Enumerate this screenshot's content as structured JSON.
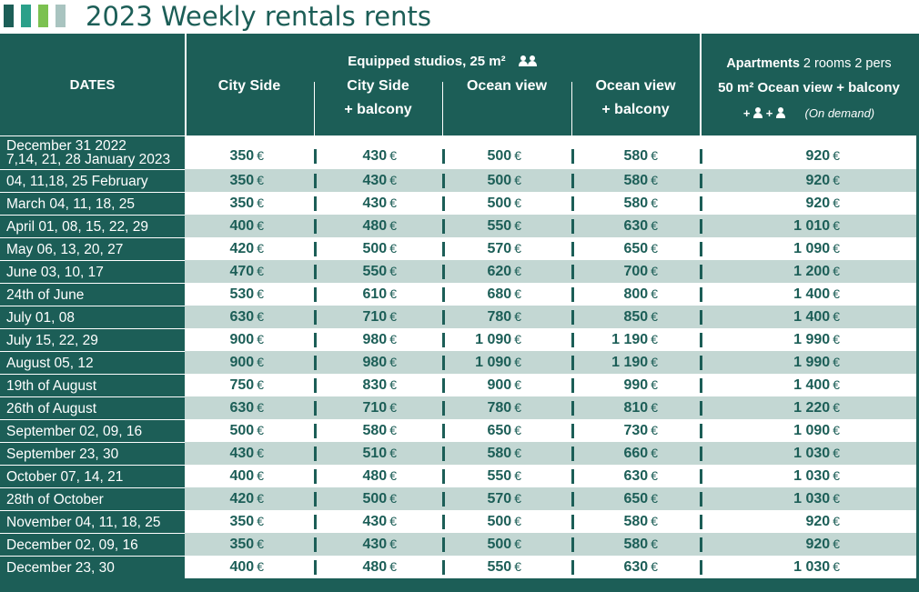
{
  "title": "2023 Weekly rentals rents",
  "logo_colors": [
    "#1c5e57",
    "#2ba08a",
    "#7cc150",
    "#a9c4c0"
  ],
  "headers": {
    "dates": "DATES",
    "studios_group": "Equipped studios, 25 m²",
    "city_side": "City Side",
    "city_side_balcony_1": "City Side",
    "city_side_balcony_2": "+ balcony",
    "ocean_view": "Ocean view",
    "ocean_view_balcony_1": "Ocean view",
    "ocean_view_balcony_2": "+ balcony",
    "apartments_bold": "Apartments",
    "apartments_rest": " 2 rooms 2 pers",
    "apartments_line2": "50 m² Ocean view + balcony",
    "apartments_plus1": "+",
    "apartments_plus2": "+",
    "on_demand": "(On demand)",
    "icon_studio": "two-persons-icon",
    "icon_extra": "person-icon"
  },
  "currency": "€",
  "rows": [
    {
      "date": "December 31 2022",
      "date2": "7,14, 21, 28 January 2023",
      "values": [
        "350",
        "430",
        "500",
        "580",
        "920"
      ]
    },
    {
      "date": "04, 11,18, 25 February",
      "values": [
        "350",
        "430",
        "500",
        "580",
        "920"
      ]
    },
    {
      "date": "March 04, 11, 18, 25",
      "values": [
        "350",
        "430",
        "500",
        "580",
        "920"
      ]
    },
    {
      "date": "April 01, 08, 15, 22, 29",
      "values": [
        "400",
        "480",
        "550",
        "630",
        "1 010"
      ]
    },
    {
      "date": "May 06, 13, 20, 27",
      "values": [
        "420",
        "500",
        "570",
        "650",
        "1 090"
      ]
    },
    {
      "date": "June 03, 10, 17",
      "values": [
        "470",
        "550",
        "620",
        "700",
        "1 200"
      ]
    },
    {
      "date": "24th of June",
      "values": [
        "530",
        "610",
        "680",
        "800",
        "1 400"
      ]
    },
    {
      "date": "July 01, 08",
      "values": [
        "630",
        "710",
        "780",
        "850",
        "1 400"
      ]
    },
    {
      "date": "July 15, 22, 29",
      "values": [
        "900",
        "980",
        "1 090",
        "1 190",
        "1 990"
      ]
    },
    {
      "date": "August 05, 12",
      "values": [
        "900",
        "980",
        "1 090",
        "1 190",
        "1 990"
      ]
    },
    {
      "date": "19th of August",
      "values": [
        "750",
        "830",
        "900",
        "990",
        "1 400"
      ]
    },
    {
      "date": "26th of August",
      "values": [
        "630",
        "710",
        "780",
        "810",
        "1 220"
      ]
    },
    {
      "date": "September 02, 09, 16",
      "values": [
        "500",
        "580",
        "650",
        "730",
        "1 090"
      ]
    },
    {
      "date": "September 23, 30",
      "values": [
        "430",
        "510",
        "580",
        "660",
        "1 030"
      ]
    },
    {
      "date": "October 07, 14, 21",
      "values": [
        "400",
        "480",
        "550",
        "630",
        "1 030"
      ]
    },
    {
      "date": "28th of October",
      "values": [
        "420",
        "500",
        "570",
        "650",
        "1 030"
      ]
    },
    {
      "date": "November 04, 11, 18, 25",
      "values": [
        "350",
        "430",
        "500",
        "580",
        "920"
      ]
    },
    {
      "date": "December 02, 09, 16",
      "values": [
        "350",
        "430",
        "500",
        "580",
        "920"
      ]
    },
    {
      "date": "December 23, 30",
      "values": [
        "400",
        "480",
        "550",
        "630",
        "1 030"
      ]
    }
  ]
}
